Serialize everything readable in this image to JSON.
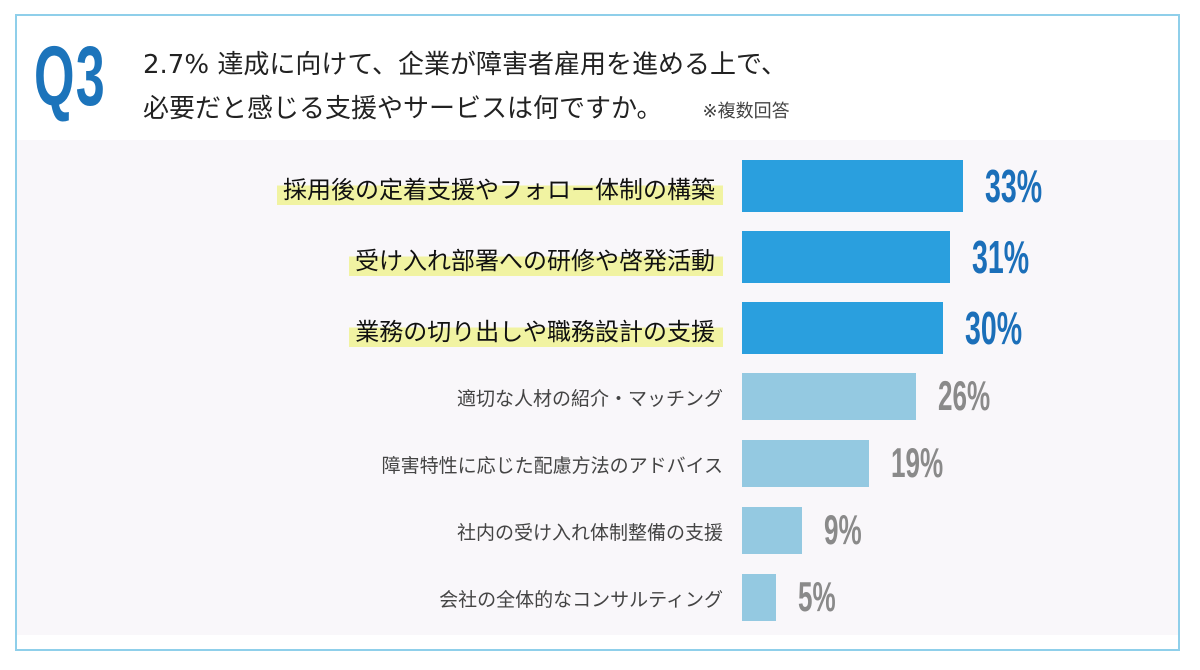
{
  "header": {
    "badge": "Q3",
    "line1": "2.7% 達成に向けて、企業が障害者雇用を進める上で、",
    "line2": "必要だと感じる支援やサービスは何ですか。",
    "note": "※複数回答"
  },
  "chart_data": {
    "type": "bar",
    "orientation": "horizontal",
    "categories": [
      "採用後の定着支援やフォロー体制の構築",
      "受け入れ部署への研修や啓発活動",
      "業務の切り出しや職務設計の支援",
      "適切な人材の紹介・マッチング",
      "障害特性に応じた配慮方法のアドバイス",
      "社内の受け入れ体制整備の支援",
      "会社の全体的なコンサルティング"
    ],
    "values": [
      33,
      31,
      30,
      26,
      19,
      9,
      5
    ],
    "labels": [
      "33%",
      "31%",
      "30%",
      "26%",
      "19%",
      "9%",
      "5%"
    ],
    "highlighted": [
      true,
      true,
      true,
      false,
      false,
      false,
      false
    ],
    "unit": "%",
    "grid": false,
    "colors": {
      "highlight_bar": "#2a9fde",
      "normal_bar": "#94c9e1",
      "highlight_pct": "#1b6fb9",
      "normal_pct": "#8a8a8a",
      "label_highlight": "#f1f3a2"
    }
  }
}
